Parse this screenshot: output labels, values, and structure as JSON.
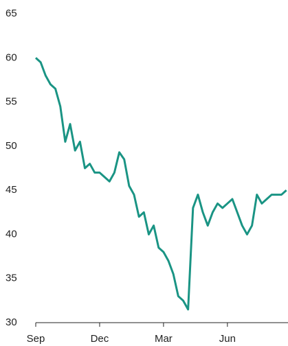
{
  "chart_data": {
    "type": "line",
    "categories": [
      "Sep",
      null,
      null,
      null,
      null,
      null,
      null,
      null,
      null,
      null,
      null,
      null,
      null,
      "Dec",
      null,
      null,
      null,
      null,
      null,
      null,
      null,
      null,
      null,
      null,
      null,
      null,
      "Mar",
      null,
      null,
      null,
      null,
      null,
      null,
      null,
      null,
      null,
      null,
      null,
      null,
      "Jun",
      null,
      null,
      null,
      null,
      null,
      null,
      null,
      null,
      null,
      null,
      null,
      null
    ],
    "series": [
      {
        "color": "#1a9484",
        "values": [
          60,
          59.5,
          58,
          57,
          56.5,
          54.5,
          50.5,
          52.5,
          49.5,
          50.5,
          47.5,
          48,
          47,
          47,
          46.5,
          46,
          47,
          49.3,
          48.5,
          45.5,
          44.5,
          42,
          42.5,
          40,
          41,
          38.5,
          38,
          37,
          35.5,
          33,
          32.5,
          31.5,
          43,
          44.5,
          42.5,
          41,
          42.5,
          43.5,
          43,
          43.5,
          44,
          42.5,
          41,
          40,
          41,
          44.5,
          43.5,
          44,
          44.5,
          44.5,
          44.5,
          45
        ]
      }
    ],
    "ylim": [
      30,
      65
    ],
    "yticks": [
      30,
      35,
      40,
      45,
      50,
      55,
      60,
      65
    ]
  }
}
